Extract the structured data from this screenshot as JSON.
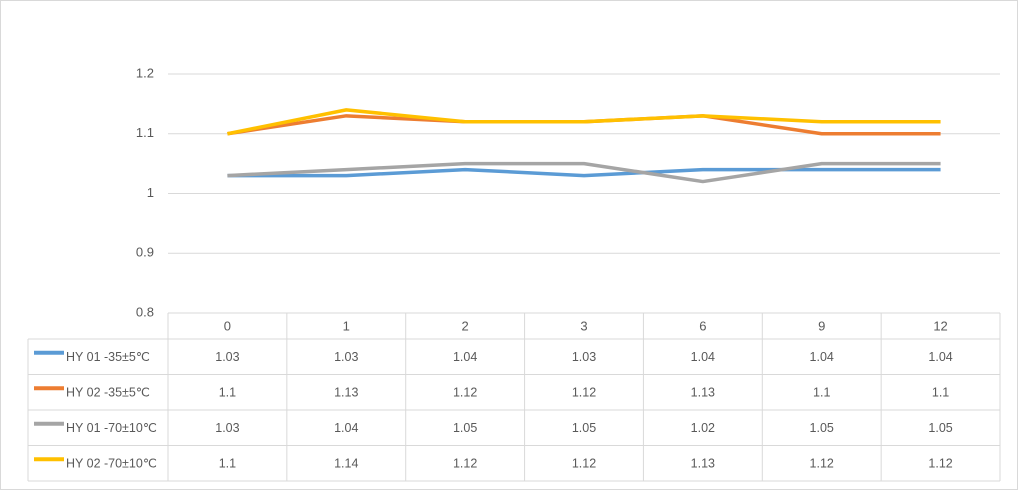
{
  "chart_data": {
    "type": "line",
    "categories": [
      "0",
      "1",
      "2",
      "3",
      "6",
      "9",
      "12"
    ],
    "series": [
      {
        "name": "HY 01 -35±5℃",
        "color": "#5b9bd5",
        "values": [
          1.03,
          1.03,
          1.04,
          1.03,
          1.04,
          1.04,
          1.04
        ]
      },
      {
        "name": "HY 02 -35±5℃",
        "color": "#ed7d31",
        "values": [
          1.1,
          1.13,
          1.12,
          1.12,
          1.13,
          1.1,
          1.1
        ]
      },
      {
        "name": "HY 01 -70±10℃",
        "color": "#a5a5a5",
        "values": [
          1.03,
          1.04,
          1.05,
          1.05,
          1.02,
          1.05,
          1.05
        ]
      },
      {
        "name": "HY 02 -70±10℃",
        "color": "#ffc000",
        "values": [
          1.1,
          1.14,
          1.12,
          1.12,
          1.13,
          1.12,
          1.12
        ]
      }
    ],
    "ylim": [
      0.8,
      1.2
    ],
    "yticks": [
      0.8,
      0.9,
      1,
      1.1,
      1.2
    ],
    "grid": true
  }
}
